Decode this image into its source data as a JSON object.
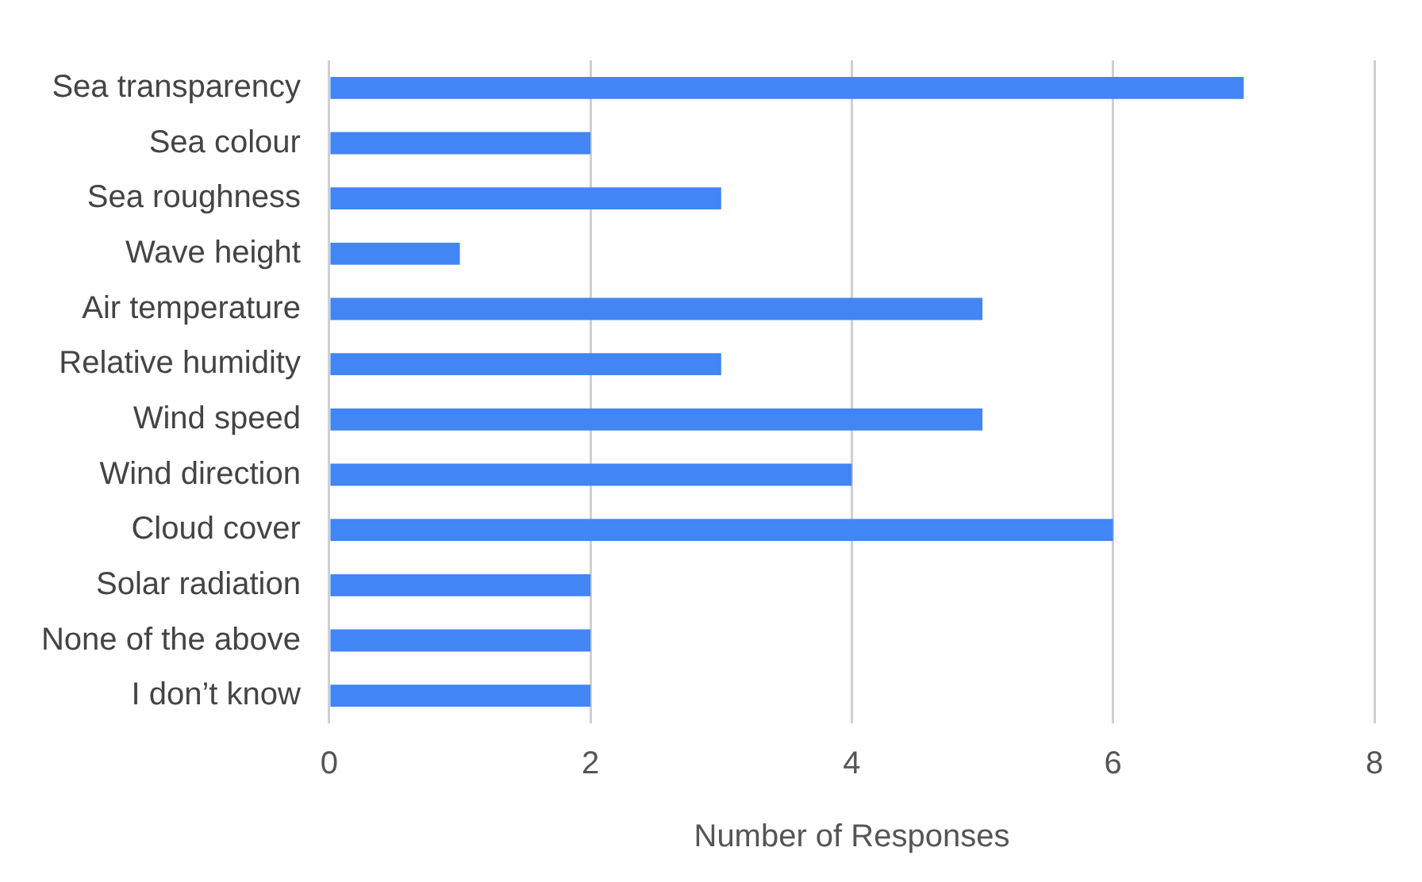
{
  "chart_data": {
    "type": "bar",
    "orientation": "horizontal",
    "xlabel": "Number of Responses",
    "categories": [
      "Sea transparency",
      "Sea colour",
      "Sea roughness",
      "Wave height",
      "Air temperature",
      "Relative humidity",
      "Wind speed",
      "Wind direction",
      "Cloud cover",
      "Solar radiation",
      "None of the above",
      "I don’t know"
    ],
    "values": [
      7,
      2,
      3,
      1,
      5,
      3,
      5,
      4,
      6,
      2,
      2,
      2
    ],
    "color": "#4285f4",
    "xlim": [
      0,
      8
    ],
    "xticks": [
      0,
      2,
      4,
      6,
      8
    ],
    "grid": "x",
    "legend": false
  }
}
